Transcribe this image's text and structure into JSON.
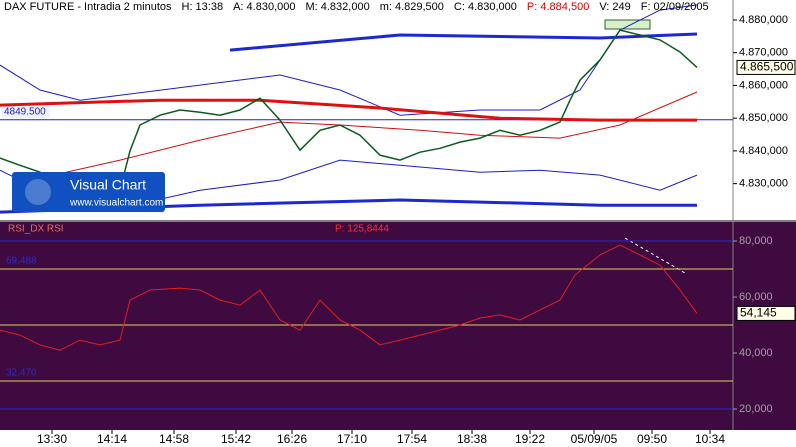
{
  "header": [
    {
      "text": "DAX FUTURE - Intradia 2 minutos",
      "color": "#000000"
    },
    {
      "text": "H: 13:38",
      "color": "#000000"
    },
    {
      "text": "A: 4.830,000",
      "color": "#000000"
    },
    {
      "text": "M: 4.832,000",
      "color": "#000000"
    },
    {
      "text": "m: 4.829,500",
      "color": "#000000"
    },
    {
      "text": "C: 4.830,000",
      "color": "#000000"
    },
    {
      "text": "P: 4.884,500",
      "color": "#e00000"
    },
    {
      "text": "V: 249",
      "color": "#000000"
    },
    {
      "text": "F: 02/09/2005",
      "color": "#000000"
    }
  ],
  "logo": {
    "name": "Visual Chart",
    "url": "www.visualchart.com"
  },
  "chart_data": [
    {
      "type": "line",
      "xlim": [
        0,
        366.5
      ],
      "xticks": [
        {
          "value": 26,
          "label": "13:30"
        },
        {
          "value": 56,
          "label": "14:14"
        },
        {
          "value": 87,
          "label": "14:58"
        },
        {
          "value": 118,
          "label": "15:42"
        },
        {
          "value": 146,
          "label": "16:26"
        },
        {
          "value": 176,
          "label": "17:10"
        },
        {
          "value": 206,
          "label": "17:54"
        },
        {
          "value": 236,
          "label": "18:38"
        },
        {
          "value": 265,
          "label": "19:22"
        },
        {
          "value": 297,
          "label": "05/09/05"
        },
        {
          "value": 326,
          "label": "09:50"
        },
        {
          "value": 355,
          "label": "10:34"
        }
      ],
      "ylim": [
        4819.5,
        4886.1
      ],
      "yticks": [
        {
          "value": 4830,
          "label": "4.830,000"
        },
        {
          "value": 4840,
          "label": "4.840,000"
        },
        {
          "value": 4850,
          "label": "4.850,000"
        },
        {
          "value": 4860,
          "label": "4.860,000"
        },
        {
          "value": 4870,
          "label": "4.870,000"
        },
        {
          "value": 4880,
          "label": "4.880,000"
        }
      ],
      "reference_line": {
        "value": 4849.5,
        "label": "4849.500",
        "color": "#2020c0"
      },
      "series": [
        {
          "color": "#1c1ccc",
          "width": 1,
          "x": [
            0,
            20,
            40,
            60,
            100,
            140,
            170,
            200,
            240,
            270,
            290,
            310,
            330,
            348.5
          ],
          "values": [
            4866.2,
            4858.6,
            4855.5,
            4857,
            4860.1,
            4863.2,
            4858.6,
            4850.9,
            4852.5,
            4852.5,
            4858.6,
            4876.9,
            4883,
            4884.6
          ]
        },
        {
          "color": "#1c1ccc",
          "width": 1,
          "x": [
            0,
            30,
            60,
            100,
            140,
            170,
            200,
            240,
            270,
            300,
            330,
            348.5
          ],
          "values": [
            4834.1,
            4825,
            4822.5,
            4828,
            4831.1,
            4837.2,
            4835.6,
            4833.5,
            4834.1,
            4832.6,
            4828,
            4832.6
          ]
        },
        {
          "color": "#d01010",
          "width": 1,
          "x": [
            20,
            60,
            100,
            140,
            170,
            210,
            240,
            280,
            310,
            348.5
          ],
          "values": [
            4831.7,
            4837.2,
            4843.3,
            4848.8,
            4847.9,
            4846.3,
            4844.8,
            4843.9,
            4847.9,
            4858
          ]
        },
        {
          "color": "#e01010",
          "width": 3,
          "x": [
            0,
            80,
            130,
            190,
            250,
            300,
            348.5
          ],
          "values": [
            4854,
            4855.5,
            4855.5,
            4853.1,
            4850,
            4849.4,
            4849.4
          ]
        },
        {
          "color": "#1c28d0",
          "width": 3,
          "x": [
            0,
            100,
            200,
            300,
            348.5
          ],
          "values": [
            4821.3,
            4823.4,
            4825,
            4823.4,
            4823.4
          ]
        },
        {
          "color": "#1c28d0",
          "width": 3,
          "x": [
            115,
            200,
            300,
            348.5
          ],
          "values": [
            4870.8,
            4875.4,
            4874.5,
            4875.7
          ]
        },
        {
          "color": "#0a5a20",
          "width": 1.5,
          "x": [
            0,
            10,
            20,
            30,
            40,
            50,
            60,
            65,
            70,
            80,
            90,
            100,
            110,
            120,
            130,
            140,
            150,
            160,
            170,
            180,
            190,
            200,
            210,
            220,
            230,
            240,
            250,
            260,
            270,
            280,
            285,
            290,
            300,
            310,
            320,
            330,
            340,
            348.5
          ],
          "values": [
            4837.8,
            4835.6,
            4833.5,
            4829.5,
            4828,
            4826.5,
            4828,
            4840,
            4847.9,
            4850.9,
            4852.5,
            4851.8,
            4850.9,
            4852.5,
            4856.1,
            4849.4,
            4840.2,
            4846.3,
            4847.9,
            4844.8,
            4838.7,
            4837.2,
            4839.6,
            4840.8,
            4842.7,
            4843.9,
            4846.3,
            4844.8,
            4846.3,
            4848.8,
            4855.5,
            4861.6,
            4867.8,
            4876.9,
            4875.4,
            4873.9,
            4870.2,
            4865.5
          ],
          "value_labels": [
            null,
            null,
            null,
            null,
            null,
            null,
            null,
            null,
            null,
            null,
            null,
            null,
            null,
            null,
            null,
            null,
            null,
            null,
            null,
            null,
            null,
            null,
            null,
            null,
            null,
            null,
            null,
            null,
            null,
            null,
            null,
            null,
            null,
            null,
            null,
            null,
            null,
            "4.865,500"
          ]
        }
      ]
    },
    {
      "type": "line",
      "title": "RSI_DX  RSI",
      "subtitle": "P: 125,8444",
      "xlim": [
        0,
        366.5
      ],
      "ylim": [
        12.5,
        86.8
      ],
      "yticks": [
        {
          "value": 20,
          "label": "20,000"
        },
        {
          "value": 40,
          "label": "40,000"
        },
        {
          "value": 60,
          "label": "60,000"
        },
        {
          "value": 80,
          "label": "80,000"
        }
      ],
      "levels": [
        {
          "value": 70,
          "label": "69.488"
        },
        {
          "value": 50
        },
        {
          "value": 30,
          "label": "32.470"
        }
      ],
      "bands": [
        80,
        20
      ],
      "series": [
        {
          "color": "#e02020",
          "width": 1,
          "x": [
            0,
            10,
            20,
            30,
            40,
            50,
            60,
            65,
            75,
            90,
            100,
            110,
            120,
            130,
            140,
            150,
            160,
            170,
            180,
            190,
            200,
            210,
            220,
            230,
            240,
            250,
            260,
            270,
            280,
            287.5,
            300,
            310,
            320,
            330,
            340,
            348.5
          ],
          "values": [
            48.2,
            46.4,
            42.9,
            41,
            44.6,
            42.9,
            44.6,
            58.9,
            62.5,
            63.2,
            62.5,
            58.9,
            57.1,
            62.5,
            51.8,
            48.2,
            58.9,
            51.8,
            48.2,
            42.9,
            44.6,
            46.4,
            48.2,
            50,
            52.5,
            53.6,
            51.8,
            55.4,
            58.9,
            67.9,
            75,
            78.6,
            75,
            71.4,
            62.5,
            54.145
          ],
          "value_labels": [
            null,
            null,
            null,
            null,
            null,
            null,
            null,
            null,
            null,
            null,
            null,
            null,
            null,
            null,
            null,
            null,
            null,
            null,
            null,
            null,
            null,
            null,
            null,
            null,
            null,
            null,
            null,
            null,
            null,
            null,
            null,
            null,
            null,
            null,
            null,
            "54,145"
          ]
        }
      ]
    }
  ]
}
